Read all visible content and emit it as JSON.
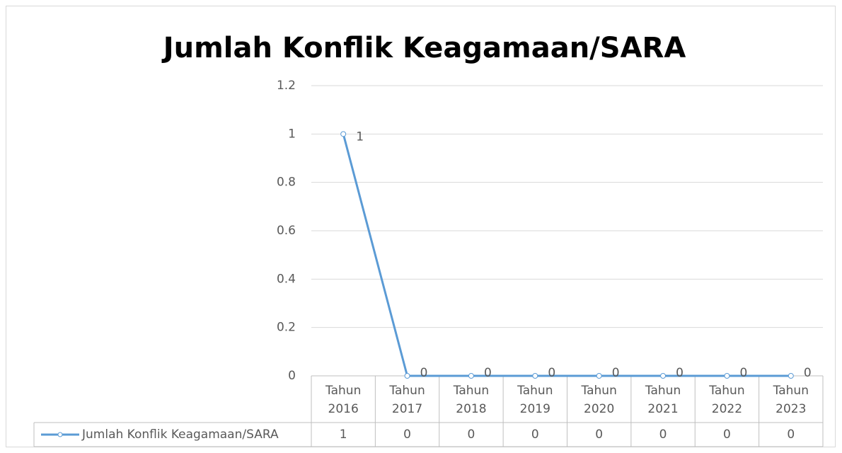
{
  "chart_data": {
    "type": "line",
    "title": "Jumlah Konflik Keagamaan/SARA",
    "categories": [
      "Tahun 2016",
      "Tahun 2017",
      "Tahun 2018",
      "Tahun 2019",
      "Tahun 2020",
      "Tahun 2021",
      "Tahun 2022",
      "Tahun 2023"
    ],
    "series": [
      {
        "name": "Jumlah Konflik Keagamaan/SARA",
        "color": "#5b9bd5",
        "values": [
          1,
          0,
          0,
          0,
          0,
          0,
          0,
          0
        ]
      }
    ],
    "ylim": [
      0,
      1.2
    ],
    "yticks": [
      0,
      0.2,
      0.4,
      0.6,
      0.8,
      1,
      1.2
    ],
    "grid": true,
    "data_table": true
  }
}
